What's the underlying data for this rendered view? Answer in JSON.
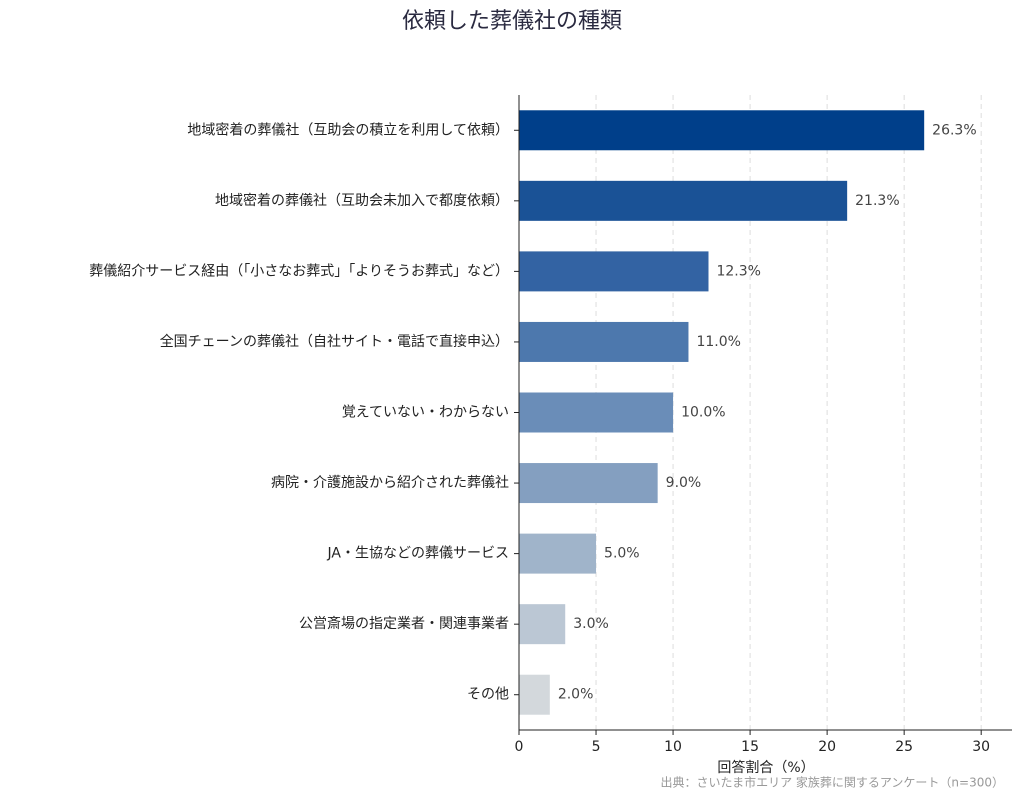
{
  "chart_data": {
    "type": "barh",
    "title": "依頼した葬儀社の種類",
    "categories": [
      "地域密着の葬儀社（互助会の積立を利用して依頼）",
      "地域密着の葬儀社（互助会未加入で都度依頼）",
      "葬儀紹介サービス経由（「小さなお葬式」「よりそうお葬式」など）",
      "全国チェーンの葬儀社（自社サイト・電話で直接申込）",
      "覚えていない・わからない",
      "病院・介護施設から紹介された葬儀社",
      "JA・生協などの葬儀サービス",
      "公営斎場の指定業者・関連事業者",
      "その他"
    ],
    "values": [
      26.3,
      21.3,
      12.3,
      11.0,
      10.0,
      9.0,
      5.0,
      3.0,
      2.0
    ],
    "value_labels": [
      "26.3%",
      "21.3%",
      "12.3%",
      "11.0%",
      "10.0%",
      "9.0%",
      "5.0%",
      "3.0%",
      "2.0%"
    ],
    "colors": [
      "#003f8a",
      "#1a5296",
      "#3363a3",
      "#4d78ad",
      "#6a8db8",
      "#849fc0",
      "#a0b4ca",
      "#bbc7d4",
      "#d3d8dc"
    ],
    "xlabel": "回答割合（%）",
    "xlim": [
      0,
      32
    ],
    "xticks": [
      0,
      5,
      10,
      15,
      20,
      25,
      30
    ],
    "grid": true,
    "source": "出典：さいたま市エリア 家族葬に関するアンケート（n=300）"
  }
}
